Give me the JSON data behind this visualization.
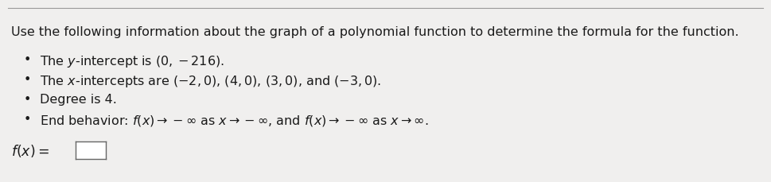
{
  "title_text": "Use the following information about the graph of a polynomial function to determine the formula for the function.",
  "bullet1_plain": "The ",
  "bullet1_y": "y",
  "bullet1_rest": "-intercept is (0, −216).",
  "bullet2_plain": "The ",
  "bullet2_x": "x",
  "bullet2_rest": "-intercepts are (−2, 0), (4, 0), (3, 0), and (−3, 0).",
  "bullet3": "Degree is 4.",
  "bullet4_pre": "End behavior: ",
  "bullet4_math": "f(x) → −∞ as x → −∞, and f(x) → −∞ as x → ∞.",
  "bg_color": "#f0efee",
  "text_color": "#1a1a1a",
  "title_fontsize": 11.5,
  "bullet_fontsize": 11.5,
  "answer_fontsize": 12.5,
  "border_color": "#999999"
}
